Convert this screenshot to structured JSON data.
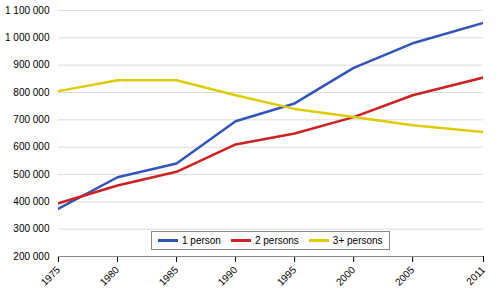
{
  "chart_data": {
    "type": "line",
    "x": [
      1975,
      1980,
      1985,
      1990,
      1995,
      2000,
      2005,
      2011
    ],
    "series": [
      {
        "name": "1 person",
        "color": "#3355bb",
        "values": [
          375000,
          490000,
          540000,
          695000,
          760000,
          890000,
          980000,
          1055000
        ]
      },
      {
        "name": "2 persons",
        "color": "#cc2222",
        "values": [
          395000,
          460000,
          510000,
          610000,
          650000,
          710000,
          790000,
          855000
        ]
      },
      {
        "name": "3+ persons",
        "color": "#ddcc00",
        "values": [
          805000,
          845000,
          845000,
          790000,
          740000,
          710000,
          680000,
          655000
        ]
      }
    ],
    "xlim": [
      1975,
      2011
    ],
    "xticks": [
      1975,
      1980,
      1985,
      1990,
      1995,
      2000,
      2005,
      2011
    ],
    "ylim": [
      200000,
      1100000
    ],
    "yticks": [
      {
        "value": 200000,
        "label": "200 000"
      },
      {
        "value": 300000,
        "label": "300 000"
      },
      {
        "value": 400000,
        "label": "400 000"
      },
      {
        "value": 500000,
        "label": "500 000"
      },
      {
        "value": 600000,
        "label": "600 000"
      },
      {
        "value": 700000,
        "label": "700 000"
      },
      {
        "value": 800000,
        "label": "800 000"
      },
      {
        "value": 900000,
        "label": "900 000"
      },
      {
        "value": 1000000,
        "label": "1 000 000"
      },
      {
        "value": 1100000,
        "label": "1 100 000"
      }
    ],
    "grid": true,
    "legend": "lower center"
  }
}
